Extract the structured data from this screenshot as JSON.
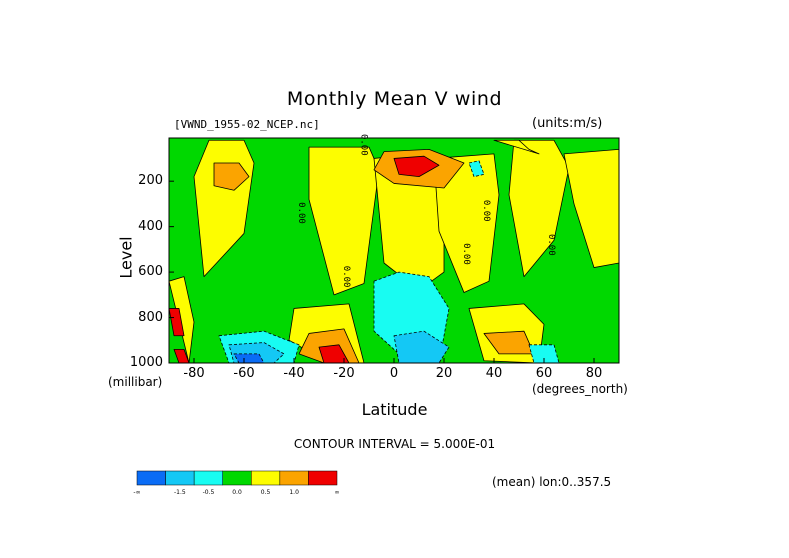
{
  "chart_data": {
    "type": "heatmap",
    "title": "Monthly Mean V wind",
    "source_label": "[VWND_1955-02_NCEP.nc]",
    "units_label": "(units:m/s)",
    "xlabel": "Latitude",
    "x_units_label": "(degrees_north)",
    "ylabel": "Level",
    "y_units_label": "(millibar)",
    "xlim": [
      -90,
      90
    ],
    "ylim": [
      1000,
      10
    ],
    "x_ticks": [
      -80,
      -60,
      -40,
      -20,
      0,
      20,
      40,
      60,
      80
    ],
    "y_ticks": [
      200,
      400,
      600,
      800,
      1000
    ],
    "contour_interval_label": "CONTOUR INTERVAL = 5.000E-01",
    "zero_contour_label": "0.00",
    "mean_label": "(mean) lon:0..357.5",
    "colorbar": {
      "colors": [
        "#0a6cf5",
        "#14c8f5",
        "#18fcf2",
        "#00d800",
        "#fdfd00",
        "#fba400",
        "#ef0000"
      ],
      "tick_labels": [
        "-∞",
        "-1.5",
        "-0.5",
        "0.0",
        "0.5",
        "1.0",
        "∞"
      ]
    },
    "regions": [
      {
        "level": 1,
        "x": [
          -74,
          -60,
          -56,
          -60,
          -76,
          -80
        ],
        "y": [
          20,
          20,
          120,
          430,
          620,
          180
        ]
      },
      {
        "level": 1,
        "x": [
          -34,
          -10,
          -6,
          -12,
          -24,
          -34
        ],
        "y": [
          50,
          50,
          150,
          650,
          700,
          280
        ]
      },
      {
        "level": 1,
        "x": [
          -8,
          10,
          20,
          20,
          10,
          -4
        ],
        "y": [
          100,
          80,
          200,
          600,
          680,
          560
        ]
      },
      {
        "level": 1,
        "x": [
          16,
          40,
          42,
          38,
          28,
          18
        ],
        "y": [
          100,
          80,
          260,
          640,
          690,
          420
        ]
      },
      {
        "level": 1,
        "x": [
          48,
          64,
          70,
          64,
          52,
          46
        ],
        "y": [
          20,
          20,
          140,
          460,
          620,
          260
        ]
      },
      {
        "level": 1,
        "x": [
          68,
          90,
          90,
          80,
          72
        ],
        "y": [
          80,
          60,
          560,
          580,
          300
        ]
      },
      {
        "level": 1,
        "x": [
          -40,
          -18,
          -12,
          -26,
          -42
        ],
        "y": [
          760,
          740,
          1000,
          1000,
          900
        ]
      },
      {
        "level": 1,
        "x": [
          30,
          52,
          60,
          58,
          36
        ],
        "y": [
          760,
          740,
          830,
          1000,
          990
        ]
      },
      {
        "level": 1,
        "x": [
          40,
          50,
          54,
          58
        ],
        "y": [
          20,
          20,
          60,
          80
        ]
      },
      {
        "level": 1,
        "x": [
          -90,
          -84,
          -80,
          -82
        ],
        "y": [
          640,
          620,
          820,
          1000
        ]
      },
      {
        "level": 2,
        "x": [
          -72,
          -62,
          -58,
          -64,
          -72
        ],
        "y": [
          120,
          120,
          180,
          240,
          220
        ]
      },
      {
        "level": 2,
        "x": [
          -4,
          14,
          28,
          20,
          0,
          -8
        ],
        "y": [
          70,
          60,
          120,
          230,
          210,
          150
        ]
      },
      {
        "level": 2,
        "x": [
          -34,
          -20,
          -14,
          -28,
          -38
        ],
        "y": [
          870,
          850,
          1000,
          1000,
          960
        ]
      },
      {
        "level": 2,
        "x": [
          36,
          52,
          56,
          42
        ],
        "y": [
          870,
          860,
          960,
          960
        ]
      },
      {
        "level": 3,
        "x": [
          0,
          12,
          18,
          10,
          2
        ],
        "y": [
          100,
          90,
          130,
          180,
          170
        ]
      },
      {
        "level": 3,
        "x": [
          -30,
          -22,
          -18,
          -28
        ],
        "y": [
          930,
          920,
          1000,
          1000
        ]
      },
      {
        "level": 3,
        "x": [
          -90,
          -86,
          -84,
          -88
        ],
        "y": [
          760,
          760,
          880,
          880
        ]
      },
      {
        "level": 3,
        "x": [
          -88,
          -84,
          -82,
          -86
        ],
        "y": [
          940,
          940,
          1000,
          1000
        ]
      },
      {
        "level": -1,
        "x": [
          -8,
          2,
          14,
          22,
          18,
          6,
          -8
        ],
        "y": [
          640,
          600,
          620,
          760,
          1000,
          1000,
          860
        ]
      },
      {
        "level": -1,
        "x": [
          -70,
          -52,
          -38,
          -40,
          -66
        ],
        "y": [
          880,
          860,
          920,
          1000,
          1000
        ]
      },
      {
        "level": -1,
        "x": [
          30,
          34,
          36,
          32
        ],
        "y": [
          120,
          110,
          170,
          180
        ]
      },
      {
        "level": -1,
        "x": [
          54,
          64,
          66,
          56
        ],
        "y": [
          920,
          920,
          1000,
          1000
        ]
      },
      {
        "level": -2,
        "x": [
          0,
          12,
          22,
          18,
          2
        ],
        "y": [
          880,
          860,
          930,
          1000,
          1000
        ]
      },
      {
        "level": -2,
        "x": [
          -66,
          -52,
          -44,
          -48,
          -64
        ],
        "y": [
          920,
          910,
          960,
          1000,
          1000
        ]
      },
      {
        "level": -3,
        "x": [
          -64,
          -54,
          -52,
          -62
        ],
        "y": [
          960,
          960,
          1000,
          1000
        ]
      }
    ]
  }
}
